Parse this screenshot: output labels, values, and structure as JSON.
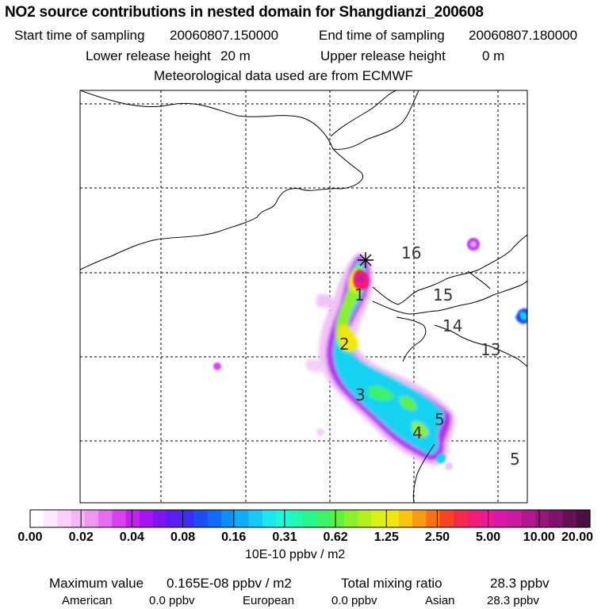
{
  "header": {
    "title": "NO2 source contributions in nested domain for Shangdianzi_200608",
    "start_label": "Start time of sampling",
    "start_value": "20060807.150000",
    "end_label": "End time of sampling",
    "end_value": "20060807.180000",
    "lower_label": "Lower release height",
    "lower_value": "20 m",
    "upper_label": "Upper release height",
    "upper_value": "0 m",
    "met": "Meteorological data used are from ECMWF"
  },
  "map": {
    "station_marker": "asterisk-icon",
    "trajectory_labels": [
      "1",
      "2",
      "3",
      "4",
      "5"
    ],
    "time_labels": [
      "16",
      "15",
      "14",
      "13",
      "5"
    ]
  },
  "colorbar": {
    "ticks": [
      "0.00",
      "0.02",
      "0.04",
      "0.08",
      "0.16",
      "0.31",
      "0.62",
      "1.25",
      "2.50",
      "5.00",
      "10.00",
      "20.00"
    ],
    "units": "10E-10 ppbv / m2",
    "colors": [
      "#ffffff",
      "#fde8fd",
      "#fad0fb",
      "#f6b6f7",
      "#ee96f3",
      "#e46cef",
      "#d842ee",
      "#c61ef1",
      "#a414f0",
      "#7e14f0",
      "#5a1ef2",
      "#3a2ef4",
      "#1e4cf5",
      "#106cf6",
      "#0e8ef8",
      "#10aef8",
      "#16caf6",
      "#1ee6f0",
      "#20f6d8",
      "#22f8b0",
      "#28f68a",
      "#3cf266",
      "#62f040",
      "#8cf02a",
      "#b4f01c",
      "#d8f014",
      "#f2e610",
      "#f8c410",
      "#fa9c12",
      "#fa7014",
      "#f84424",
      "#f42a4a",
      "#ef1e74",
      "#e81c94",
      "#dc18a8",
      "#c81a9e",
      "#b0188e",
      "#98167c",
      "#7e146a",
      "#641256",
      "#4a1040"
    ]
  },
  "stats": {
    "max_label": "Maximum value",
    "max_value": "0.165E-08 ppbv / m2",
    "total_label": "Total mixing ratio",
    "total_value": "28.3 ppbv",
    "american_label": "American",
    "american_value": "0.0 ppbv",
    "european_label": "European",
    "european_value": "0.0 ppbv",
    "asian_label": "Asian",
    "asian_value": "28.3 ppbv"
  }
}
